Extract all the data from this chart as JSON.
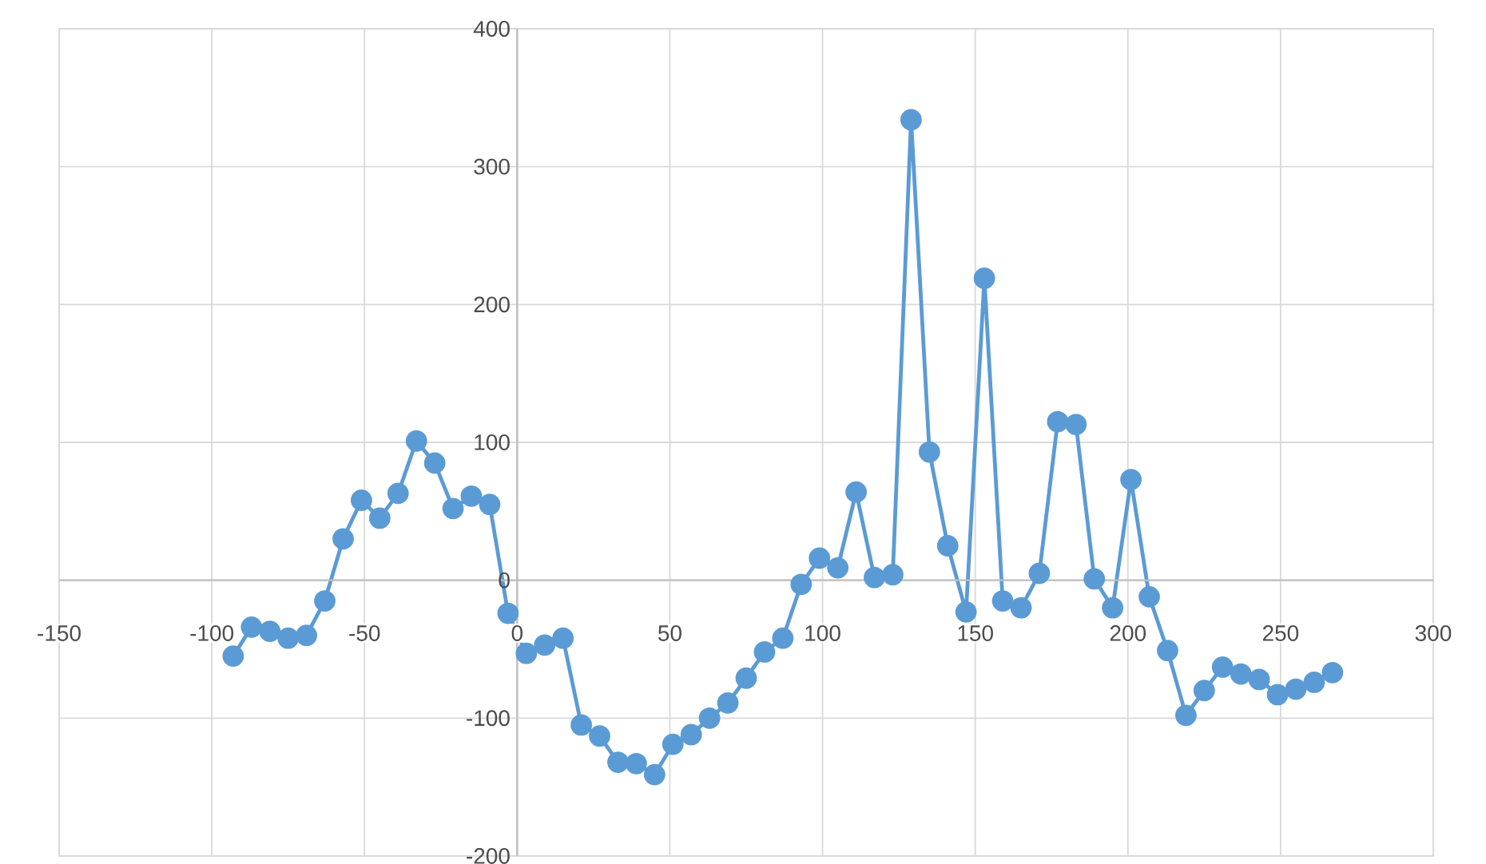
{
  "chart_data": {
    "type": "line",
    "x": [
      -93,
      -87,
      -81,
      -75,
      -69,
      -63,
      -57,
      -51,
      -45,
      -39,
      -33,
      -27,
      -21,
      -15,
      -9,
      -3,
      3,
      9,
      15,
      21,
      27,
      33,
      39,
      45,
      51,
      57,
      63,
      69,
      75,
      81,
      87,
      93,
      99,
      105,
      111,
      117,
      123,
      129,
      135,
      141,
      147,
      153,
      159,
      165,
      171,
      177,
      183,
      189,
      195,
      201,
      207,
      213,
      219,
      225,
      231,
      237,
      243,
      249,
      255,
      261,
      267
    ],
    "series": [
      {
        "color": "#5b9bd5",
        "values": [
          -55,
          -34,
          -37,
          -42,
          -40,
          -15,
          30,
          58,
          45,
          63,
          101,
          85,
          52,
          61,
          55,
          -24,
          -53,
          -47,
          -42,
          -105,
          -113,
          -132,
          -133,
          -141,
          -119,
          -112,
          -100,
          -89,
          -71,
          -52,
          -42,
          -3,
          16,
          9,
          64,
          2,
          4,
          334,
          93,
          25,
          -23,
          219,
          -15,
          -20,
          5,
          115,
          113,
          1,
          -20,
          73,
          -12,
          -51,
          -98,
          -80,
          -63,
          -68,
          -72,
          -83,
          -79,
          -74,
          -67
        ]
      }
    ],
    "xlim": [
      -150,
      300
    ],
    "ylim": [
      -200,
      400
    ],
    "xticks": [
      -150,
      -100,
      -50,
      0,
      50,
      100,
      150,
      200,
      250,
      300
    ],
    "yticks": [
      -200,
      -100,
      0,
      100,
      200,
      300,
      400
    ],
    "grid": true,
    "marker": "circle",
    "line_style": "solid"
  }
}
